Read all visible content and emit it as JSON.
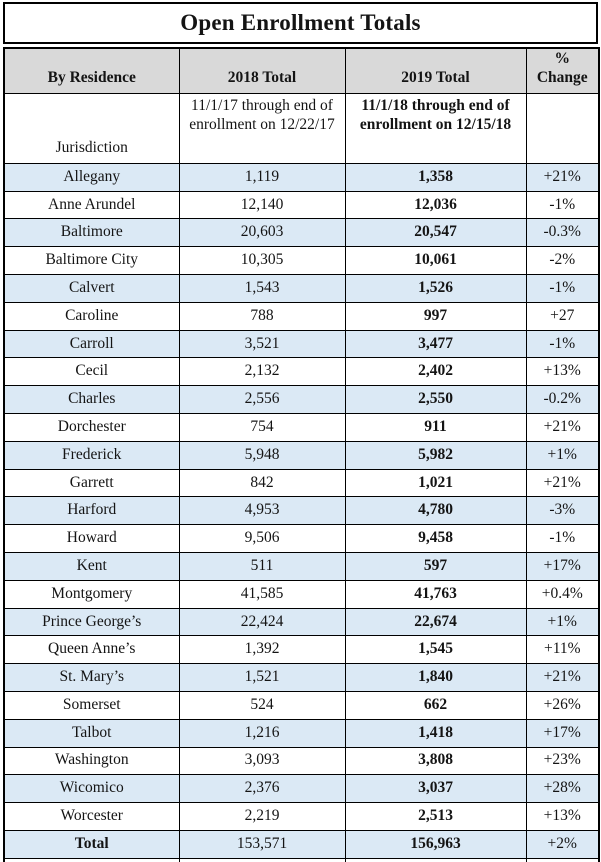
{
  "title": "Open Enrollment Totals",
  "colors": {
    "row_shade": "#dbe9f5",
    "header_bg": "#d9d9d9",
    "border": "#000000"
  },
  "table": {
    "columns": [
      "By Residence",
      "2018 Total",
      "2019 Total",
      "% Change"
    ],
    "subheader": {
      "jurisdiction_label": "Jurisdiction",
      "note_2018": "11/1/17 through end of enrollment on 12/22/17",
      "note_2019": "11/1/18 through end of enrollment on 12/15/18"
    },
    "rows": [
      {
        "jurisdiction": "Allegany",
        "total_2018": "1,119",
        "total_2019": "1,358",
        "pct_change": "+21%"
      },
      {
        "jurisdiction": "Anne Arundel",
        "total_2018": "12,140",
        "total_2019": "12,036",
        "pct_change": "-1%"
      },
      {
        "jurisdiction": "Baltimore",
        "total_2018": "20,603",
        "total_2019": "20,547",
        "pct_change": "-0.3%"
      },
      {
        "jurisdiction": "Baltimore City",
        "total_2018": "10,305",
        "total_2019": "10,061",
        "pct_change": "-2%"
      },
      {
        "jurisdiction": "Calvert",
        "total_2018": "1,543",
        "total_2019": "1,526",
        "pct_change": "-1%"
      },
      {
        "jurisdiction": "Caroline",
        "total_2018": "788",
        "total_2019": "997",
        "pct_change": "+27"
      },
      {
        "jurisdiction": "Carroll",
        "total_2018": "3,521",
        "total_2019": "3,477",
        "pct_change": "-1%"
      },
      {
        "jurisdiction": "Cecil",
        "total_2018": "2,132",
        "total_2019": "2,402",
        "pct_change": "+13%"
      },
      {
        "jurisdiction": "Charles",
        "total_2018": "2,556",
        "total_2019": "2,550",
        "pct_change": "-0.2%"
      },
      {
        "jurisdiction": "Dorchester",
        "total_2018": "754",
        "total_2019": "911",
        "pct_change": "+21%"
      },
      {
        "jurisdiction": "Frederick",
        "total_2018": "5,948",
        "total_2019": "5,982",
        "pct_change": "+1%"
      },
      {
        "jurisdiction": "Garrett",
        "total_2018": "842",
        "total_2019": "1,021",
        "pct_change": "+21%"
      },
      {
        "jurisdiction": "Harford",
        "total_2018": "4,953",
        "total_2019": "4,780",
        "pct_change": "-3%"
      },
      {
        "jurisdiction": "Howard",
        "total_2018": "9,506",
        "total_2019": "9,458",
        "pct_change": "-1%"
      },
      {
        "jurisdiction": "Kent",
        "total_2018": "511",
        "total_2019": "597",
        "pct_change": "+17%"
      },
      {
        "jurisdiction": "Montgomery",
        "total_2018": "41,585",
        "total_2019": "41,763",
        "pct_change": "+0.4%"
      },
      {
        "jurisdiction": "Prince George’s",
        "total_2018": "22,424",
        "total_2019": "22,674",
        "pct_change": "+1%"
      },
      {
        "jurisdiction": "Queen Anne’s",
        "total_2018": "1,392",
        "total_2019": "1,545",
        "pct_change": "+11%"
      },
      {
        "jurisdiction": "St. Mary’s",
        "total_2018": "1,521",
        "total_2019": "1,840",
        "pct_change": "+21%"
      },
      {
        "jurisdiction": "Somerset",
        "total_2018": "524",
        "total_2019": "662",
        "pct_change": "+26%"
      },
      {
        "jurisdiction": "Talbot",
        "total_2018": "1,216",
        "total_2019": "1,418",
        "pct_change": "+17%"
      },
      {
        "jurisdiction": "Washington",
        "total_2018": "3,093",
        "total_2019": "3,808",
        "pct_change": "+23%"
      },
      {
        "jurisdiction": "Wicomico",
        "total_2018": "2,376",
        "total_2019": "3,037",
        "pct_change": "+28%"
      },
      {
        "jurisdiction": "Worcester",
        "total_2018": "2,219",
        "total_2019": "2,513",
        "pct_change": "+13%"
      },
      {
        "jurisdiction": "Total",
        "total_2018": "153,571",
        "total_2019": "156,963",
        "pct_change": "+2%",
        "is_total": true
      }
    ]
  }
}
